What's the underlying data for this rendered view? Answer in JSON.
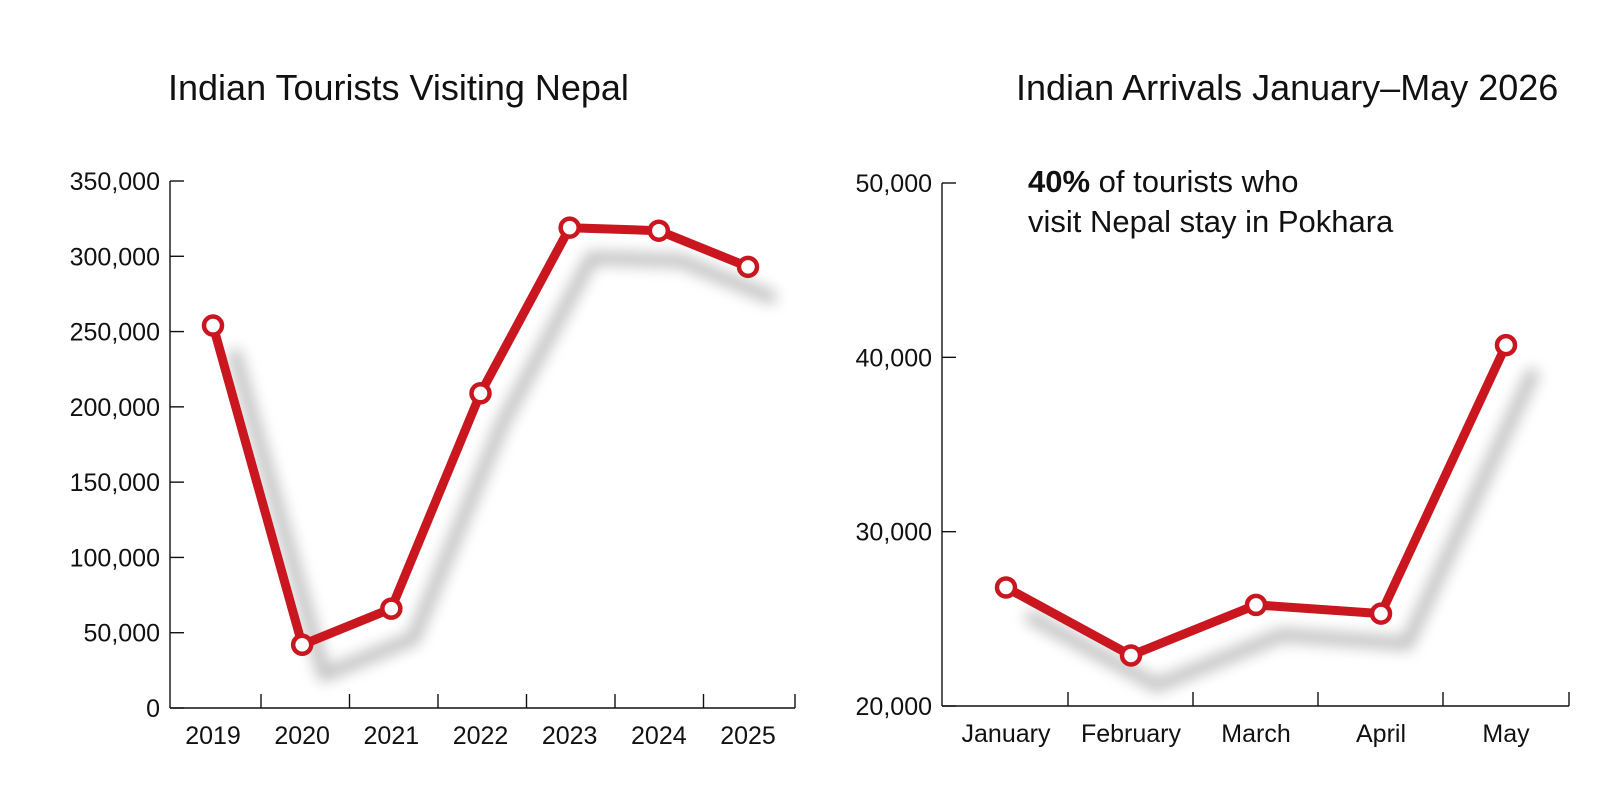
{
  "chart_data": [
    {
      "type": "line",
      "title": "Indian Tourists Visiting Nepal",
      "categories": [
        "2019",
        "2020",
        "2021",
        "2022",
        "2023",
        "2024",
        "2025"
      ],
      "values": [
        254000,
        42000,
        66000,
        209000,
        319000,
        317000,
        293000
      ],
      "ylim": [
        0,
        350000
      ],
      "yticks": [
        0,
        50000,
        100000,
        150000,
        200000,
        250000,
        300000,
        350000
      ],
      "ytick_labels": [
        "0",
        "50,000",
        "100,000",
        "150,000",
        "200,000",
        "250,000",
        "300,000",
        "350,000"
      ],
      "xlabel": "",
      "ylabel": "",
      "grid": false
    },
    {
      "type": "line",
      "title": "Indian Arrivals January–May 2026",
      "categories": [
        "January",
        "February",
        "March",
        "April",
        "May"
      ],
      "values": [
        26800,
        22900,
        25800,
        25300,
        40700
      ],
      "ylim": [
        20000,
        50000
      ],
      "yticks": [
        20000,
        30000,
        40000,
        50000
      ],
      "ytick_labels": [
        "20,000",
        "30,000",
        "40,000",
        "50,000"
      ],
      "xlabel": "",
      "ylabel": "",
      "grid": false,
      "annotation": {
        "bold": "40%",
        "line1_rest": " of tourists who",
        "line2": "visit Nepal stay in Pokhara"
      }
    }
  ],
  "colors": {
    "series": "#c9161f",
    "marker_fill": "#ffffff",
    "axis": "#111111",
    "shadow": "#555555"
  }
}
